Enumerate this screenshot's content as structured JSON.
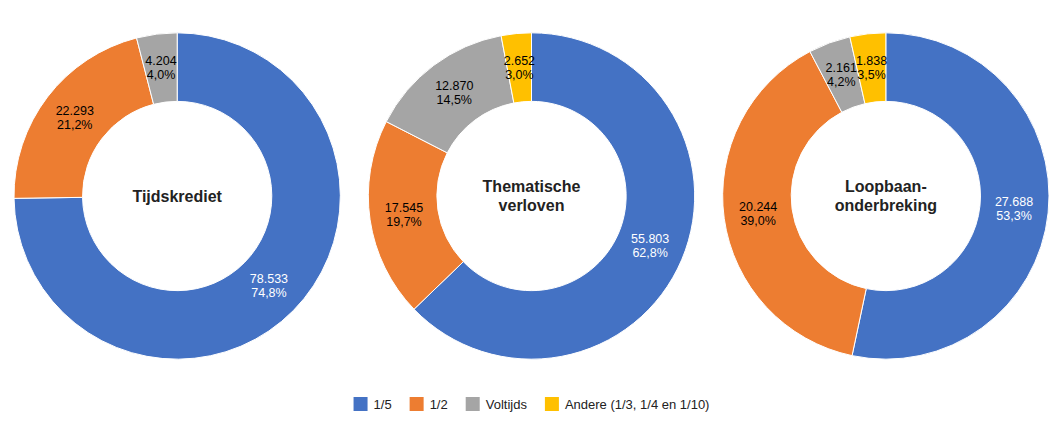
{
  "chart_data": [
    {
      "type": "pie",
      "title": "Tijdskrediet",
      "categories": [
        "1/5",
        "1/2",
        "Voltijds",
        "Andere (1/3, 1/4 en 1/10)"
      ],
      "values": [
        78533,
        22293,
        4204,
        0
      ],
      "value_labels": [
        "78.533\n74,8%",
        "22.293\n21,2%",
        "4.204\n4,0%",
        null
      ],
      "colors": [
        "#4472C4",
        "#ED7D31",
        "#A5A5A5",
        "#FFC000"
      ],
      "data_labels": true,
      "legend": "bottom"
    },
    {
      "type": "pie",
      "title": "Thematische\nverloven",
      "categories": [
        "1/5",
        "1/2",
        "Voltijds",
        "Andere (1/3, 1/4 en 1/10)"
      ],
      "values": [
        55803,
        17545,
        12870,
        2652
      ],
      "value_labels": [
        "55.803\n62,8%",
        "17.545\n19,7%",
        "12.870\n14,5%",
        "2.652\n3,0%"
      ],
      "colors": [
        "#4472C4",
        "#ED7D31",
        "#A5A5A5",
        "#FFC000"
      ],
      "data_labels": true
    },
    {
      "type": "pie",
      "title": "Loopbaan-\nonderbreking",
      "categories": [
        "1/5",
        "1/2",
        "Voltijds",
        "Andere (1/3, 1/4 en 1/10)"
      ],
      "values": [
        27688,
        20244,
        2161,
        1838
      ],
      "value_labels": [
        "27.688\n53,3%",
        "20.244\n39,0%",
        "2.161\n4,2%",
        "1.838\n3,5%"
      ],
      "colors": [
        "#4472C4",
        "#ED7D31",
        "#A5A5A5",
        "#FFC000"
      ],
      "data_labels": true
    }
  ]
}
